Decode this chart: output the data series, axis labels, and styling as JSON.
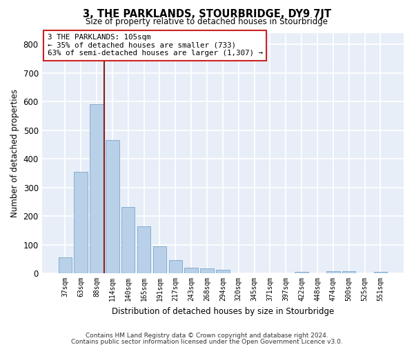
{
  "title": "3, THE PARKLANDS, STOURBRIDGE, DY9 7JT",
  "subtitle": "Size of property relative to detached houses in Stourbridge",
  "xlabel": "Distribution of detached houses by size in Stourbridge",
  "ylabel": "Number of detached properties",
  "bar_color": "#b8d0e8",
  "bar_edge_color": "#7aa8cc",
  "background_color": "#e8eef8",
  "grid_color": "#ffffff",
  "categories": [
    "37sqm",
    "63sqm",
    "88sqm",
    "114sqm",
    "140sqm",
    "165sqm",
    "191sqm",
    "217sqm",
    "243sqm",
    "268sqm",
    "294sqm",
    "320sqm",
    "345sqm",
    "371sqm",
    "397sqm",
    "422sqm",
    "448sqm",
    "474sqm",
    "500sqm",
    "525sqm",
    "551sqm"
  ],
  "values": [
    55,
    355,
    590,
    465,
    232,
    163,
    93,
    45,
    20,
    18,
    12,
    0,
    0,
    0,
    0,
    5,
    0,
    8,
    8,
    0,
    6
  ],
  "property_label": "3 THE PARKLANDS: 105sqm",
  "annotation_line1": "← 35% of detached houses are smaller (733)",
  "annotation_line2": "63% of semi-detached houses are larger (1,307) →",
  "vline_x_index": 2.5,
  "footnote1": "Contains HM Land Registry data © Crown copyright and database right 2024.",
  "footnote2": "Contains public sector information licensed under the Open Government Licence v3.0.",
  "ylim": [
    0,
    840
  ],
  "yticks": [
    0,
    100,
    200,
    300,
    400,
    500,
    600,
    700,
    800
  ]
}
